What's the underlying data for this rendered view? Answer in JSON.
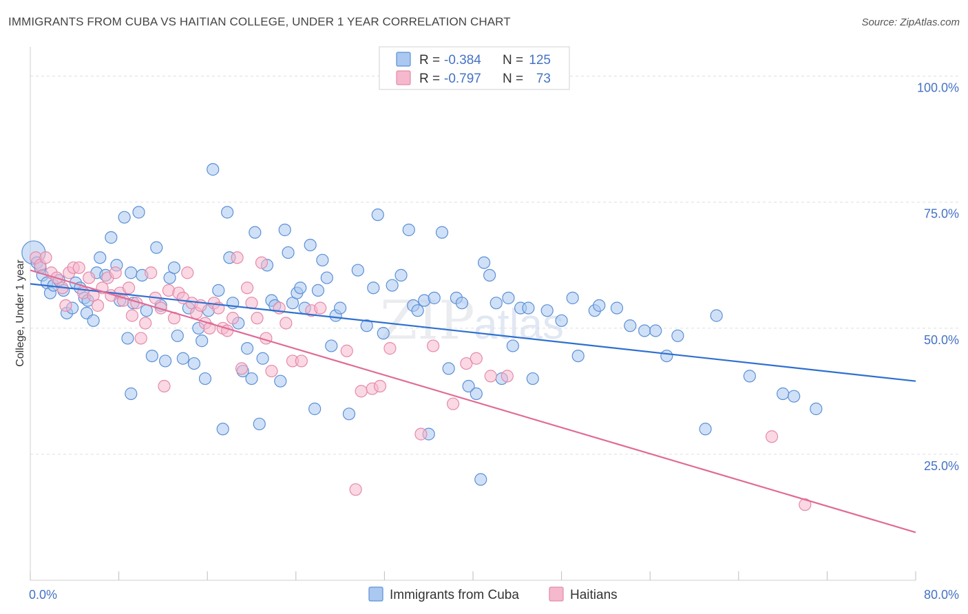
{
  "title": "IMMIGRANTS FROM CUBA VS HAITIAN COLLEGE, UNDER 1 YEAR CORRELATION CHART",
  "source": "Source: ZipAtlas.com",
  "watermark": {
    "zip": "ZIP",
    "atlas": "atlas"
  },
  "colors": {
    "cuba_fill": "#aac8f0",
    "cuba_stroke": "#5b8fd6",
    "cuba_line": "#2e6fd0",
    "haiti_fill": "#f5b8cd",
    "haiti_stroke": "#e48aa9",
    "haiti_line": "#e06b96",
    "grid": "#d9dde3",
    "tick_text": "#4472c4"
  },
  "legend_top": [
    {
      "r_label": "R =",
      "r_value": "-0.384",
      "n_label": "N =",
      "n_value": "125"
    },
    {
      "r_label": "R =",
      "r_value": "-0.797",
      "n_label": "N =",
      "n_value": "73"
    }
  ],
  "chart_data": {
    "type": "scatter",
    "xlabel": "",
    "ylabel": "College, Under 1 year",
    "xlim": [
      0,
      80
    ],
    "ylim": [
      0,
      105
    ],
    "x_tick_labels": [
      {
        "value": 0,
        "label": "0.0%"
      },
      {
        "value": 80,
        "label": "80.0%"
      }
    ],
    "y_tick_labels": [
      {
        "value": 100,
        "label": "100.0%"
      },
      {
        "value": 75,
        "label": "75.0%"
      },
      {
        "value": 50,
        "label": "50.0%"
      },
      {
        "value": 25,
        "label": "25.0%"
      }
    ],
    "grid": true,
    "legend_position": "bottom-center",
    "series": [
      {
        "name": "Immigrants from Cuba",
        "trend": {
          "x": [
            0,
            80
          ],
          "y": [
            58.8,
            39.5
          ]
        },
        "points": [
          [
            0.3,
            65.0
          ],
          [
            0.6,
            63.0
          ],
          [
            0.9,
            62.0
          ],
          [
            1.1,
            60.5
          ],
          [
            1.5,
            59.0
          ],
          [
            1.8,
            57.0
          ],
          [
            2.1,
            58.5
          ],
          [
            2.6,
            59.5
          ],
          [
            3.0,
            57.5
          ],
          [
            3.3,
            53.0
          ],
          [
            3.8,
            54.0
          ],
          [
            4.1,
            59.0
          ],
          [
            4.5,
            58.0
          ],
          [
            4.9,
            56.0
          ],
          [
            5.2,
            55.5
          ],
          [
            5.1,
            53.0
          ],
          [
            5.7,
            51.5
          ],
          [
            6.0,
            61.0
          ],
          [
            6.3,
            64.0
          ],
          [
            6.8,
            60.5
          ],
          [
            7.3,
            68.0
          ],
          [
            7.8,
            62.5
          ],
          [
            8.1,
            55.5
          ],
          [
            8.5,
            72.0
          ],
          [
            8.8,
            48.0
          ],
          [
            9.1,
            61.0
          ],
          [
            9.3,
            55.0
          ],
          [
            9.8,
            73.0
          ],
          [
            10.1,
            60.5
          ],
          [
            10.5,
            53.5
          ],
          [
            11.0,
            44.5
          ],
          [
            11.4,
            66.0
          ],
          [
            11.8,
            54.5
          ],
          [
            12.2,
            43.5
          ],
          [
            12.6,
            60.0
          ],
          [
            13.0,
            62.0
          ],
          [
            13.3,
            48.5
          ],
          [
            13.8,
            44.0
          ],
          [
            14.3,
            54.0
          ],
          [
            14.8,
            43.0
          ],
          [
            15.2,
            50.0
          ],
          [
            15.5,
            47.5
          ],
          [
            15.8,
            40.0
          ],
          [
            9.1,
            37.0
          ],
          [
            16.1,
            53.5
          ],
          [
            16.5,
            81.5
          ],
          [
            17.0,
            57.5
          ],
          [
            17.4,
            30.0
          ],
          [
            17.8,
            73.0
          ],
          [
            18.0,
            64.0
          ],
          [
            18.3,
            55.0
          ],
          [
            18.8,
            51.0
          ],
          [
            19.2,
            41.5
          ],
          [
            19.6,
            46.0
          ],
          [
            20.0,
            40.0
          ],
          [
            20.3,
            69.0
          ],
          [
            20.7,
            31.0
          ],
          [
            21.0,
            44.0
          ],
          [
            21.4,
            62.5
          ],
          [
            21.8,
            55.5
          ],
          [
            22.1,
            54.5
          ],
          [
            22.6,
            39.5
          ],
          [
            23.0,
            69.5
          ],
          [
            23.3,
            65.0
          ],
          [
            23.7,
            55.0
          ],
          [
            24.1,
            57.0
          ],
          [
            24.4,
            58.0
          ],
          [
            24.8,
            54.0
          ],
          [
            25.3,
            66.5
          ],
          [
            25.7,
            34.0
          ],
          [
            26.0,
            57.5
          ],
          [
            26.4,
            63.5
          ],
          [
            26.8,
            60.0
          ],
          [
            27.2,
            46.5
          ],
          [
            27.6,
            52.5
          ],
          [
            28.0,
            54.0
          ],
          [
            28.8,
            33.0
          ],
          [
            29.6,
            61.5
          ],
          [
            30.4,
            50.5
          ],
          [
            31.0,
            58.0
          ],
          [
            31.4,
            72.5
          ],
          [
            31.9,
            49.0
          ],
          [
            32.7,
            58.5
          ],
          [
            33.5,
            60.5
          ],
          [
            34.2,
            69.5
          ],
          [
            34.6,
            54.5
          ],
          [
            35.0,
            53.5
          ],
          [
            35.6,
            55.5
          ],
          [
            36.0,
            29.0
          ],
          [
            36.5,
            56.0
          ],
          [
            37.2,
            69.0
          ],
          [
            37.8,
            42.0
          ],
          [
            38.5,
            56.0
          ],
          [
            39.0,
            55.0
          ],
          [
            39.6,
            38.5
          ],
          [
            40.3,
            37.0
          ],
          [
            40.7,
            20.0
          ],
          [
            41.0,
            63.0
          ],
          [
            41.5,
            60.5
          ],
          [
            42.1,
            55.0
          ],
          [
            42.6,
            40.0
          ],
          [
            43.2,
            56.0
          ],
          [
            43.6,
            46.5
          ],
          [
            44.3,
            54.0
          ],
          [
            45.0,
            54.0
          ],
          [
            45.4,
            40.0
          ],
          [
            46.7,
            53.5
          ],
          [
            48.0,
            51.5
          ],
          [
            49.0,
            56.0
          ],
          [
            49.5,
            44.5
          ],
          [
            51.0,
            53.5
          ],
          [
            51.4,
            54.5
          ],
          [
            53.0,
            54.0
          ],
          [
            54.2,
            50.5
          ],
          [
            55.5,
            49.5
          ],
          [
            56.5,
            49.5
          ],
          [
            57.5,
            44.5
          ],
          [
            58.5,
            48.5
          ],
          [
            61.0,
            30.0
          ],
          [
            62.0,
            52.5
          ],
          [
            65.0,
            40.5
          ],
          [
            68.0,
            37.0
          ],
          [
            69.0,
            36.5
          ],
          [
            71.0,
            34.0
          ]
        ]
      },
      {
        "name": "Haitians",
        "trend": {
          "x": [
            0,
            80
          ],
          "y": [
            61.5,
            9.5
          ]
        },
        "points": [
          [
            0.5,
            64.0
          ],
          [
            0.9,
            62.5
          ],
          [
            1.4,
            64.0
          ],
          [
            1.9,
            61.0
          ],
          [
            2.4,
            60.0
          ],
          [
            2.9,
            58.0
          ],
          [
            3.2,
            54.5
          ],
          [
            3.5,
            61.0
          ],
          [
            3.9,
            62.0
          ],
          [
            4.4,
            62.0
          ],
          [
            4.8,
            57.0
          ],
          [
            5.3,
            60.0
          ],
          [
            5.7,
            56.5
          ],
          [
            6.1,
            54.5
          ],
          [
            6.5,
            58.0
          ],
          [
            7.0,
            60.0
          ],
          [
            7.3,
            56.5
          ],
          [
            7.7,
            61.0
          ],
          [
            8.1,
            57.0
          ],
          [
            8.4,
            55.5
          ],
          [
            8.9,
            58.0
          ],
          [
            9.2,
            52.5
          ],
          [
            9.6,
            55.0
          ],
          [
            10.0,
            48.0
          ],
          [
            10.4,
            51.0
          ],
          [
            10.9,
            61.0
          ],
          [
            11.3,
            56.0
          ],
          [
            11.8,
            54.0
          ],
          [
            12.1,
            38.5
          ],
          [
            12.5,
            57.5
          ],
          [
            13.0,
            52.0
          ],
          [
            13.4,
            57.0
          ],
          [
            13.8,
            56.0
          ],
          [
            14.2,
            61.0
          ],
          [
            14.6,
            55.0
          ],
          [
            15.0,
            53.0
          ],
          [
            15.4,
            54.5
          ],
          [
            15.8,
            51.0
          ],
          [
            16.2,
            50.0
          ],
          [
            16.6,
            55.0
          ],
          [
            17.0,
            54.0
          ],
          [
            17.4,
            50.0
          ],
          [
            17.8,
            49.5
          ],
          [
            18.3,
            52.0
          ],
          [
            18.7,
            64.0
          ],
          [
            19.1,
            42.0
          ],
          [
            19.6,
            58.0
          ],
          [
            20.0,
            55.0
          ],
          [
            20.5,
            52.0
          ],
          [
            20.9,
            63.0
          ],
          [
            21.3,
            48.0
          ],
          [
            21.8,
            41.5
          ],
          [
            22.5,
            54.0
          ],
          [
            23.1,
            51.0
          ],
          [
            23.7,
            43.5
          ],
          [
            24.5,
            43.5
          ],
          [
            25.4,
            53.5
          ],
          [
            26.2,
            54.0
          ],
          [
            28.6,
            45.5
          ],
          [
            29.4,
            18.0
          ],
          [
            29.9,
            37.5
          ],
          [
            30.9,
            38.0
          ],
          [
            31.6,
            38.5
          ],
          [
            32.5,
            46.0
          ],
          [
            35.3,
            29.0
          ],
          [
            36.4,
            46.5
          ],
          [
            38.2,
            35.0
          ],
          [
            39.4,
            43.0
          ],
          [
            40.3,
            44.0
          ],
          [
            41.6,
            40.5
          ],
          [
            43.1,
            40.5
          ],
          [
            67.0,
            28.5
          ],
          [
            70.0,
            15.0
          ]
        ]
      }
    ]
  },
  "legend_bottom": [
    {
      "label": "Immigrants from Cuba"
    },
    {
      "label": "Haitians"
    }
  ]
}
